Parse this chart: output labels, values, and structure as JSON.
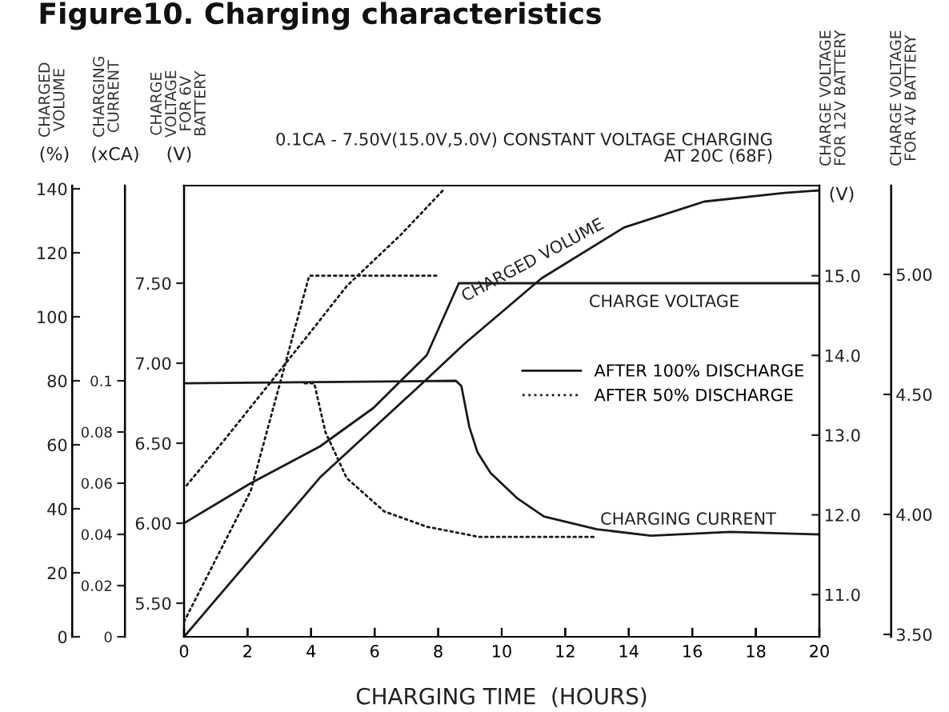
{
  "chart_data": [
    {
      "type": "line",
      "title": "Figure10. Charging characteristics",
      "subtitle": "0.1CA - 7.50V(15.0V,5.0V) CONSTANT VOLTAGE CHARGING\nAT 20C (68F)",
      "xlabel": "CHARGING TIME  (HOURS)",
      "ylabel": "CHARGED\nVOLUME",
      "y2label": "CHARGING\nCURRENT",
      "y3label": "CHARGE\nVOLTAGE\nFOR 6V\nBATTERY",
      "xlim": [
        0,
        20
      ],
      "xticks": [
        0,
        2,
        4,
        6,
        8,
        10,
        12,
        14,
        16,
        18,
        20
      ],
      "ylim": [
        0,
        141
      ],
      "yticks": [
        0,
        20,
        40,
        60,
        80,
        100,
        120,
        140
      ],
      "y2lim": [
        0,
        0.17625
      ],
      "y2ticks": [
        0,
        0.02,
        0.04,
        0.06,
        0.08,
        0.1
      ],
      "y3lim": [
        5.29,
        8.11
      ],
      "y3ticks": [
        {
          "value": 5.5,
          "label": "5.50"
        },
        {
          "value": 6.0,
          "label": "6.00"
        },
        {
          "value": 6.5,
          "label": "6.50"
        },
        {
          "value": 7.0,
          "label": "7.00"
        },
        {
          "value": 7.5,
          "label": "7.50"
        }
      ],
      "marker": "none",
      "legend": "center right",
      "series": [
        {
          "name": "AFTER 100% DISCHARGE",
          "color": "#1a1a1a",
          "line_style": "solid",
          "axis": "y",
          "x": [
            0,
            4.28,
            7.64,
            8.82,
            11.25,
            13.85,
            16.37,
            18.9,
            20
          ],
          "values": [
            0,
            49.8,
            80.5,
            91.5,
            112,
            127.9,
            136,
            138.7,
            139.5
          ]
        },
        {
          "name": "AFTER 50% DISCHARGE",
          "color": "#1a1a1a",
          "line_style": "dotted",
          "axis": "y",
          "x": [
            0.08,
            1.26,
            2.6,
            3.94,
            5.12,
            6.8,
            8.15
          ],
          "values": [
            47.3,
            61.4,
            78,
            94.7,
            109.6,
            125.4,
            139.5
          ]
        },
        {
          "color": "#1a1a1a",
          "line_style": "solid",
          "axis": "y3",
          "x": [
            0,
            2.1,
            4.28,
            5.96,
            7.64,
            8.65,
            20
          ],
          "values": [
            6.0,
            6.25,
            6.48,
            6.72,
            7.05,
            7.5,
            7.5
          ]
        },
        {
          "color": "#1a1a1a",
          "line_style": "solid",
          "axis": "y2",
          "x": [
            0,
            8.56,
            8.73,
            8.98,
            9.24,
            9.65,
            10.5,
            11.33,
            13.0,
            14.7,
            17.2,
            20
          ],
          "values": [
            0.099,
            0.1,
            0.098,
            0.082,
            0.072,
            0.064,
            0.054,
            0.047,
            0.042,
            0.0395,
            0.041,
            0.04
          ]
        },
        {
          "color": "#1a1a1a",
          "line_style": "dotted",
          "axis": "y2",
          "x": [
            3.8,
            4.1,
            4.45,
            5.12,
            6.3,
            7.64,
            9.3,
            13.0
          ],
          "values": [
            0.099,
            0.099,
            0.08,
            0.062,
            0.049,
            0.043,
            0.039,
            0.039
          ]
        }
      ],
      "annotations": [
        "(%)",
        "(xCA)",
        "(V)",
        "(V)",
        "CHARGED VOLUME",
        "CHARGE VOLTAGE",
        "CHARGING CURRENT"
      ]
    },
    {
      "type": "line",
      "xlim": [
        0,
        20
      ],
      "xticks": [
        0,
        2,
        4,
        6,
        8,
        10,
        12,
        14,
        16,
        18,
        20
      ],
      "marker": "none",
      "series": [
        {
          "color": "#1a1a1a",
          "line_style": "dotted",
          "axis": "y",
          "x": [
            0,
            2.1,
            3.94,
            7.97
          ],
          "values": [
            10.66,
            12.3,
            15.0,
            15.0
          ]
        }
      ],
      "ylabel": "CHARGE VOLTAGE\nFOR 12V BATTERY",
      "y2label": "CHARGE VOLTAGE\nFOR 4V BATTERY",
      "ylim": [
        10.47,
        16.13
      ],
      "yticks": [
        {
          "value": 11,
          "label": "11.0"
        },
        {
          "value": 12,
          "label": "12.0"
        },
        {
          "value": 13,
          "label": "13.0"
        },
        {
          "value": 14,
          "label": "14.0"
        },
        {
          "value": 15,
          "label": "15.0"
        }
      ],
      "y2lim": [
        3.49,
        5.37
      ],
      "y2ticks": [
        {
          "value": 3.5,
          "label": "3.50"
        },
        {
          "value": 4.0,
          "label": "4.00"
        },
        {
          "value": 4.5,
          "label": "4.50"
        },
        {
          "value": 5.0,
          "label": "5.00"
        }
      ],
      "tick_labels": "y"
    }
  ]
}
